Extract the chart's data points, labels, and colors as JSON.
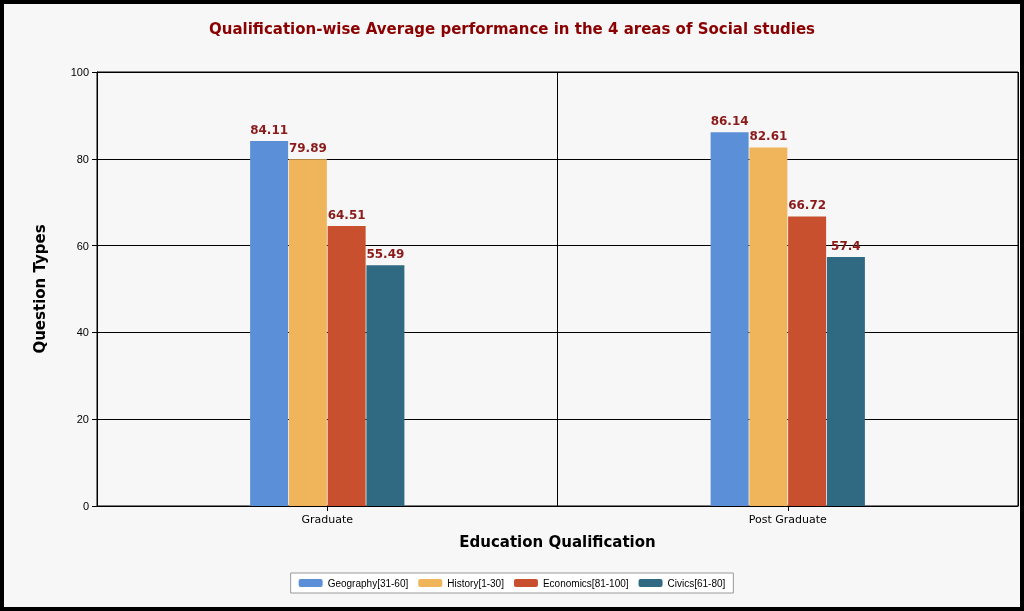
{
  "chart_data": {
    "type": "bar",
    "title": "Qualification-wise Average performance in the 4 areas of Social studies",
    "xlabel": "Education Qualification",
    "ylabel": "Question Types",
    "categories": [
      "Graduate",
      "Post Graduate"
    ],
    "series": [
      {
        "name": "Geography[31-60]",
        "color": "#5b8fd8",
        "values": [
          84.11,
          86.14
        ]
      },
      {
        "name": "History[1-30]",
        "color": "#f0b45a",
        "values": [
          79.89,
          82.61
        ]
      },
      {
        "name": "Economics[81-100]",
        "color": "#c8502e",
        "values": [
          64.51,
          66.72
        ]
      },
      {
        "name": "Civics[61-80]",
        "color": "#2f6a82",
        "values": [
          55.49,
          57.4
        ]
      }
    ],
    "ylim": [
      0,
      100
    ],
    "yticks": [
      0,
      20,
      40,
      60,
      80,
      100
    ],
    "grid": true,
    "legend": "bottom",
    "data_labels": true
  }
}
